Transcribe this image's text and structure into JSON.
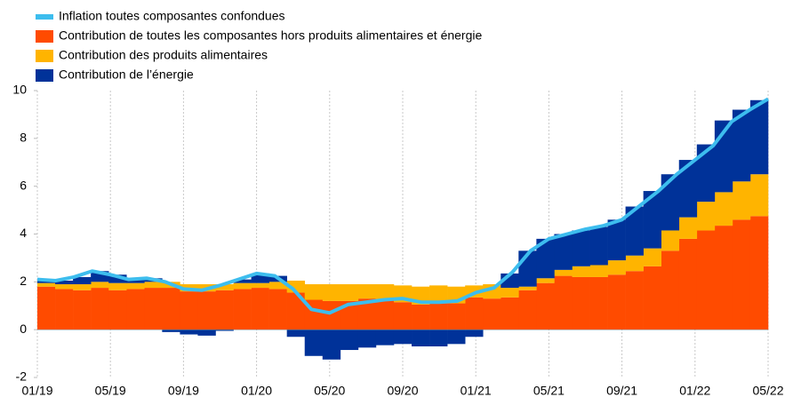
{
  "chart_data": {
    "type": "stacked_bar_line",
    "categories": [
      "01/19",
      null,
      null,
      null,
      "05/19",
      null,
      null,
      null,
      "09/19",
      null,
      null,
      null,
      "01/20",
      null,
      null,
      null,
      "05/20",
      null,
      null,
      null,
      "09/20",
      null,
      null,
      null,
      "01/21",
      null,
      null,
      null,
      "05/21",
      null,
      null,
      null,
      "09/21",
      null,
      null,
      null,
      "01/22",
      null,
      null,
      null,
      "05/22"
    ],
    "series": [
      {
        "name": "Inflation toutes composantes confondues",
        "color": "#3dbdee",
        "kind": "line",
        "values": [
          2.1,
          2.05,
          2.2,
          2.45,
          2.3,
          2.1,
          2.15,
          2.0,
          1.7,
          1.65,
          1.85,
          2.1,
          2.35,
          2.25,
          1.7,
          0.85,
          0.7,
          1.05,
          1.15,
          1.25,
          1.3,
          1.15,
          1.15,
          1.2,
          1.55,
          1.75,
          2.4,
          3.3,
          3.8,
          4.0,
          4.2,
          4.35,
          4.6,
          5.2,
          5.8,
          6.5,
          7.1,
          7.7,
          8.7,
          9.2,
          9.65
        ]
      },
      {
        "name": "Contribution de toutes les composantes hors produits alimentaires et énergie",
        "color": "#ff4b00",
        "kind": "bar",
        "values": [
          1.8,
          1.7,
          1.65,
          1.75,
          1.65,
          1.7,
          1.75,
          1.75,
          1.6,
          1.6,
          1.65,
          1.7,
          1.75,
          1.7,
          1.55,
          1.25,
          1.2,
          1.2,
          1.3,
          1.25,
          1.15,
          1.05,
          1.1,
          1.1,
          1.35,
          1.3,
          1.35,
          1.65,
          1.95,
          2.25,
          2.2,
          2.2,
          2.3,
          2.45,
          2.65,
          3.3,
          3.8,
          4.15,
          4.35,
          4.6,
          4.75
        ]
      },
      {
        "name": "Contribution des produits alimentaires",
        "color": "#ffb400",
        "kind": "bar",
        "values": [
          0.15,
          0.2,
          0.25,
          0.25,
          0.3,
          0.25,
          0.25,
          0.25,
          0.3,
          0.3,
          0.25,
          0.25,
          0.2,
          0.3,
          0.5,
          0.65,
          0.7,
          0.7,
          0.6,
          0.65,
          0.7,
          0.75,
          0.75,
          0.7,
          0.5,
          0.6,
          0.4,
          0.15,
          0.2,
          0.25,
          0.45,
          0.5,
          0.6,
          0.65,
          0.75,
          0.85,
          0.9,
          1.2,
          1.4,
          1.6,
          1.75
        ]
      },
      {
        "name": "Contribution de l’énergie",
        "color": "#003299",
        "kind": "bar",
        "values": [
          0.15,
          0.15,
          0.3,
          0.45,
          0.35,
          0.15,
          0.15,
          -0.1,
          -0.2,
          -0.25,
          -0.05,
          0.15,
          0.4,
          0.25,
          -0.3,
          -1.1,
          -1.25,
          -0.85,
          -0.75,
          -0.65,
          -0.6,
          -0.7,
          -0.7,
          -0.6,
          -0.3,
          0,
          0.6,
          1.5,
          1.65,
          1.5,
          1.5,
          1.6,
          1.7,
          2.05,
          2.4,
          2.35,
          2.4,
          2.4,
          3.0,
          3.0,
          3.1
        ]
      }
    ],
    "ylim": [
      -2,
      10
    ],
    "yticks": [
      -2,
      0,
      2,
      4,
      6,
      8,
      10
    ],
    "grid": true
  }
}
